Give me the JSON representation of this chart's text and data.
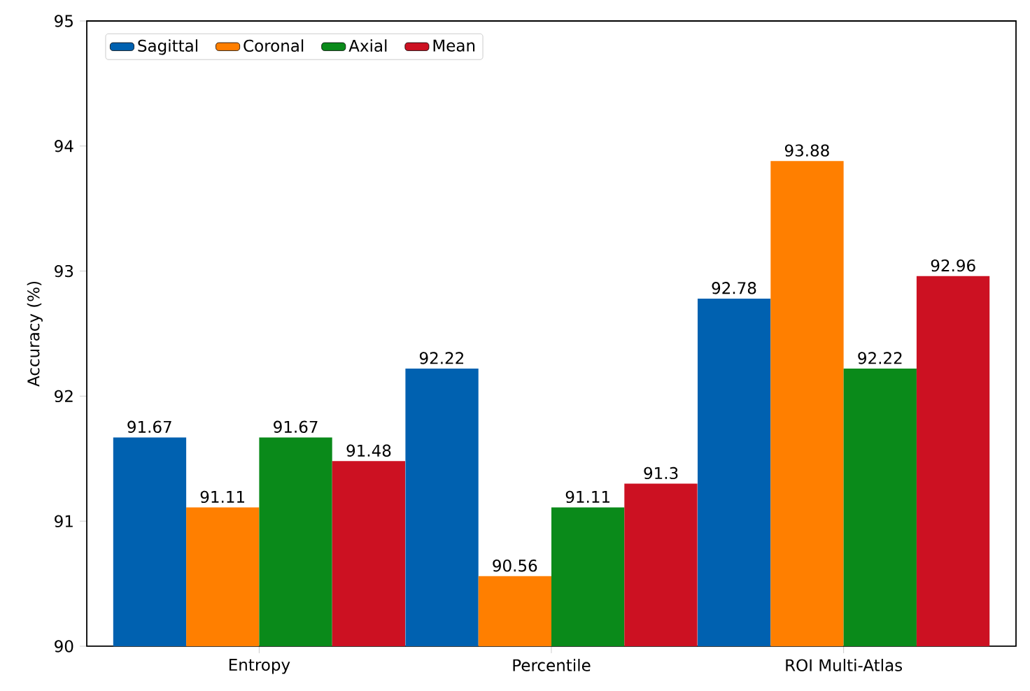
{
  "chart_data": {
    "type": "bar",
    "ylabel": "Accuracy (%)",
    "categories": [
      "Entropy",
      "Percentile",
      "ROI Multi-Atlas"
    ],
    "series": [
      {
        "name": "Sagittal",
        "color": "#0061b0",
        "values": [
          91.67,
          92.22,
          92.78
        ]
      },
      {
        "name": "Coronal",
        "color": "#ff7f00",
        "values": [
          91.11,
          90.56,
          93.88
        ]
      },
      {
        "name": "Axial",
        "color": "#0a8a1a",
        "values": [
          91.67,
          91.11,
          92.22
        ]
      },
      {
        "name": "Mean",
        "color": "#cc1122",
        "values": [
          91.48,
          91.3,
          92.96
        ]
      }
    ],
    "ylim": [
      90,
      95
    ],
    "yticks": [
      90,
      91,
      92,
      93,
      94,
      95
    ],
    "data_labels": true,
    "legend": "top left",
    "grid": false
  }
}
